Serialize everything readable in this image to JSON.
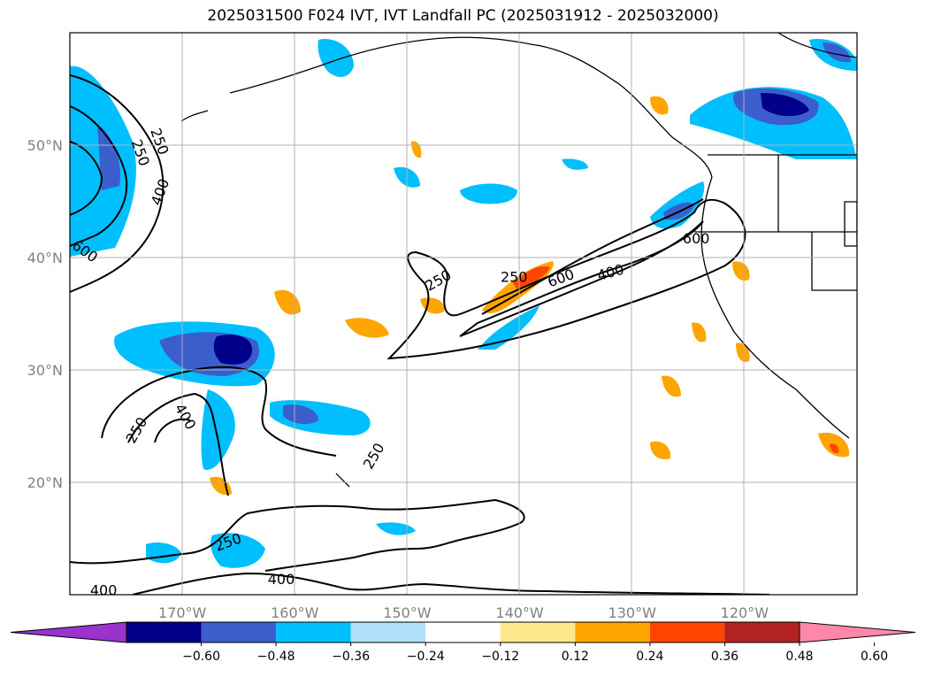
{
  "title": "2025031500 F024 IVT, IVT Landfall PC (2025031912 - 2025032000)",
  "map": {
    "lon_range": [
      -180,
      -110
    ],
    "lat_range": [
      10,
      60
    ],
    "lat_ticks": [
      {
        "value": 50,
        "label": "50°N"
      },
      {
        "value": 40,
        "label": "40°N"
      },
      {
        "value": 30,
        "label": "30°N"
      },
      {
        "value": 20,
        "label": "20°N"
      }
    ],
    "lon_ticks": [
      {
        "value": -170,
        "label": "170°W"
      },
      {
        "value": -160,
        "label": "160°W"
      },
      {
        "value": -150,
        "label": "150°W"
      },
      {
        "value": -140,
        "label": "140°W"
      },
      {
        "value": -130,
        "label": "130°W"
      },
      {
        "value": -120,
        "label": "120°W"
      }
    ],
    "gridlines": true
  },
  "contour_labels": [
    {
      "text": "250",
      "lon": -173.8,
      "lat": 49.3,
      "rot": 70
    },
    {
      "text": "250",
      "lon": -172.1,
      "lat": 50.3,
      "rot": 70
    },
    {
      "text": "400",
      "lon": -171.9,
      "lat": 45.8,
      "rot": -70
    },
    {
      "text": "600",
      "lon": -178.7,
      "lat": 40.5,
      "rot": 35
    },
    {
      "text": "250",
      "lon": -147.2,
      "lat": 37.9,
      "rot": -30
    },
    {
      "text": "250",
      "lon": -140.5,
      "lat": 38.2,
      "rot": 0
    },
    {
      "text": "600",
      "lon": -136.3,
      "lat": 38.1,
      "rot": -20
    },
    {
      "text": "400",
      "lon": -131.9,
      "lat": 38.6,
      "rot": -15
    },
    {
      "text": "600",
      "lon": -124.3,
      "lat": 41.6,
      "rot": 0
    },
    {
      "text": "250",
      "lon": -174.0,
      "lat": 24.6,
      "rot": -60
    },
    {
      "text": "400",
      "lon": -169.8,
      "lat": 25.8,
      "rot": 60
    },
    {
      "text": "250",
      "lon": -152.9,
      "lat": 22.3,
      "rot": -60
    },
    {
      "text": "250",
      "lon": -165.9,
      "lat": 14.6,
      "rot": -20
    },
    {
      "text": "400",
      "lon": -177.0,
      "lat": 10.3,
      "rot": 0
    },
    {
      "text": "400",
      "lon": -161.2,
      "lat": 11.3,
      "rot": 0
    }
  ],
  "colorbar": {
    "colors": [
      "#9933cc",
      "#00008b",
      "#3a5fcd",
      "#00bfff",
      "#b0e0f8",
      "#ffffff",
      "#ffe88c",
      "#ffa500",
      "#ff4500",
      "#b22222",
      "#ff88aa"
    ],
    "tick_labels": [
      "−0.60",
      "−0.48",
      "−0.36",
      "−0.24",
      "−0.12",
      "0.12",
      "0.24",
      "0.36",
      "0.48",
      "0.60"
    ]
  }
}
